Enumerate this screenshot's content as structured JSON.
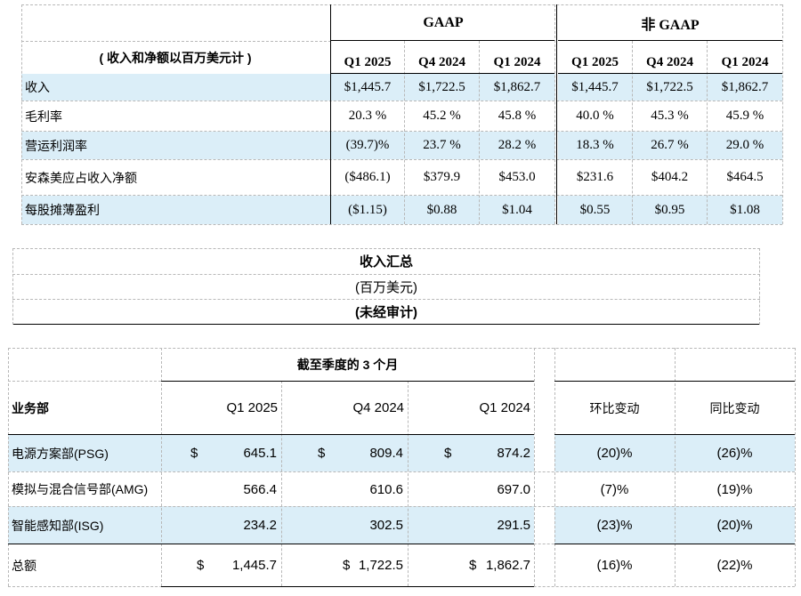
{
  "summary": {
    "unit_label": "( 收入和净额以百万美元计 )",
    "group_headers": [
      "GAAP",
      "非 GAAP"
    ],
    "periods": [
      "Q1 2025",
      "Q4 2024",
      "Q1 2024",
      "Q1 2025",
      "Q4 2024",
      "Q1 2024"
    ],
    "rows": [
      {
        "label": "收入",
        "values": [
          "$1,445.7",
          "$1,722.5",
          "$1,862.7",
          "$1,445.7",
          "$1,722.5",
          "$1,862.7"
        ]
      },
      {
        "label": "毛利率",
        "values": [
          "20.3 %",
          "45.2 %",
          "45.8 %",
          "40.0 %",
          "45.3 %",
          "45.9 %"
        ]
      },
      {
        "label": "营运利润率",
        "values": [
          "(39.7)%",
          "23.7 %",
          "28.2 %",
          "18.3 %",
          "26.7 %",
          "29.0 %"
        ]
      },
      {
        "label": "安森美应占收入净额",
        "values": [
          "($486.1)",
          "$379.9",
          "$453.0",
          "$231.6",
          "$404.2",
          "$464.5"
        ]
      },
      {
        "label": "每股摊薄盈利",
        "values": [
          "($1.15)",
          "$0.88",
          "$1.04",
          "$0.55",
          "$0.95",
          "$1.08"
        ]
      }
    ]
  },
  "revenue_title": {
    "title": "收入汇总",
    "unit": "(百万美元)",
    "note": "(未经审计)"
  },
  "segments": {
    "period_header": "截至季度的 3  个月",
    "segment_header": "业务部",
    "periods": [
      "Q1 2025",
      "Q4 2024",
      "Q1 2024"
    ],
    "change_headers": [
      "环比变动",
      "同比变动"
    ],
    "rows": [
      {
        "label": "电源方案部(PSG)",
        "currency": "$",
        "values": [
          "645.1",
          "809.4",
          "874.2"
        ],
        "qoq": "(20)%",
        "yoy": "(26)%"
      },
      {
        "label": "模拟与混合信号部(AMG)",
        "currency": "",
        "values": [
          "566.4",
          "610.6",
          "697.0"
        ],
        "qoq": "(7)%",
        "yoy": "(19)%"
      },
      {
        "label": "智能感知部(ISG)",
        "currency": "",
        "values": [
          "234.2",
          "302.5",
          "291.5"
        ],
        "qoq": "(23)%",
        "yoy": "(20)%"
      },
      {
        "label": "总额",
        "currency": "$",
        "values": [
          "1,445.7",
          "1,722.5",
          "1,862.7"
        ],
        "qoq": "(16)%",
        "yoy": "(22)%"
      }
    ]
  }
}
